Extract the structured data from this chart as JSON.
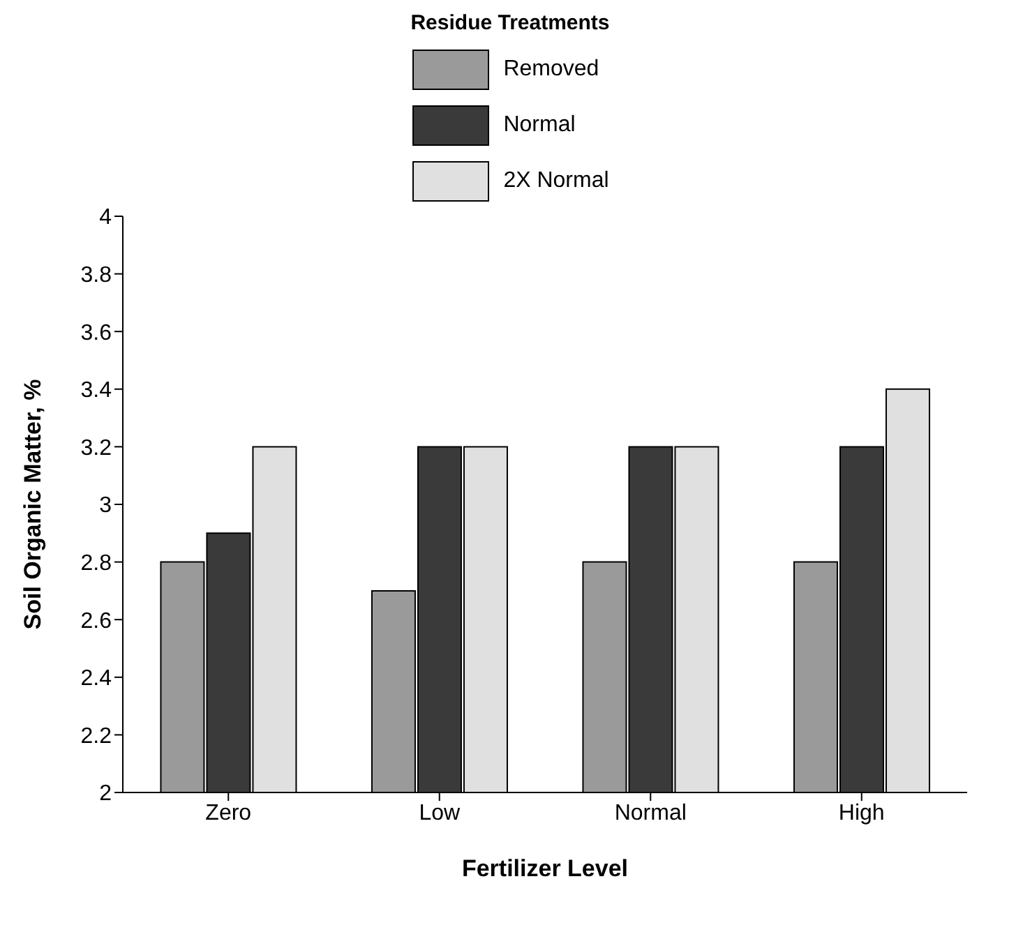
{
  "chart_data": {
    "type": "bar",
    "xlabel": "Fertilizer Level",
    "ylabel": "Soil Organic Matter, %",
    "legend_title": "Residue Treatments",
    "categories": [
      "Zero",
      "Low",
      "Normal",
      "High"
    ],
    "series": [
      {
        "name": "Removed",
        "color": "#9a9a9a",
        "values": [
          2.8,
          2.7,
          2.8,
          2.8
        ]
      },
      {
        "name": "Normal",
        "color": "#3a3a3a",
        "values": [
          2.9,
          3.2,
          3.2,
          3.2
        ]
      },
      {
        "name": "2X Normal",
        "color": "#e0e0e0",
        "values": [
          3.2,
          3.2,
          3.2,
          3.4
        ]
      }
    ],
    "ylim": [
      2,
      4
    ],
    "yticks": [
      2,
      2.2,
      2.4,
      2.6,
      2.8,
      3,
      3.2,
      3.4,
      3.6,
      3.8,
      4
    ],
    "grid": false,
    "legend": "top"
  }
}
